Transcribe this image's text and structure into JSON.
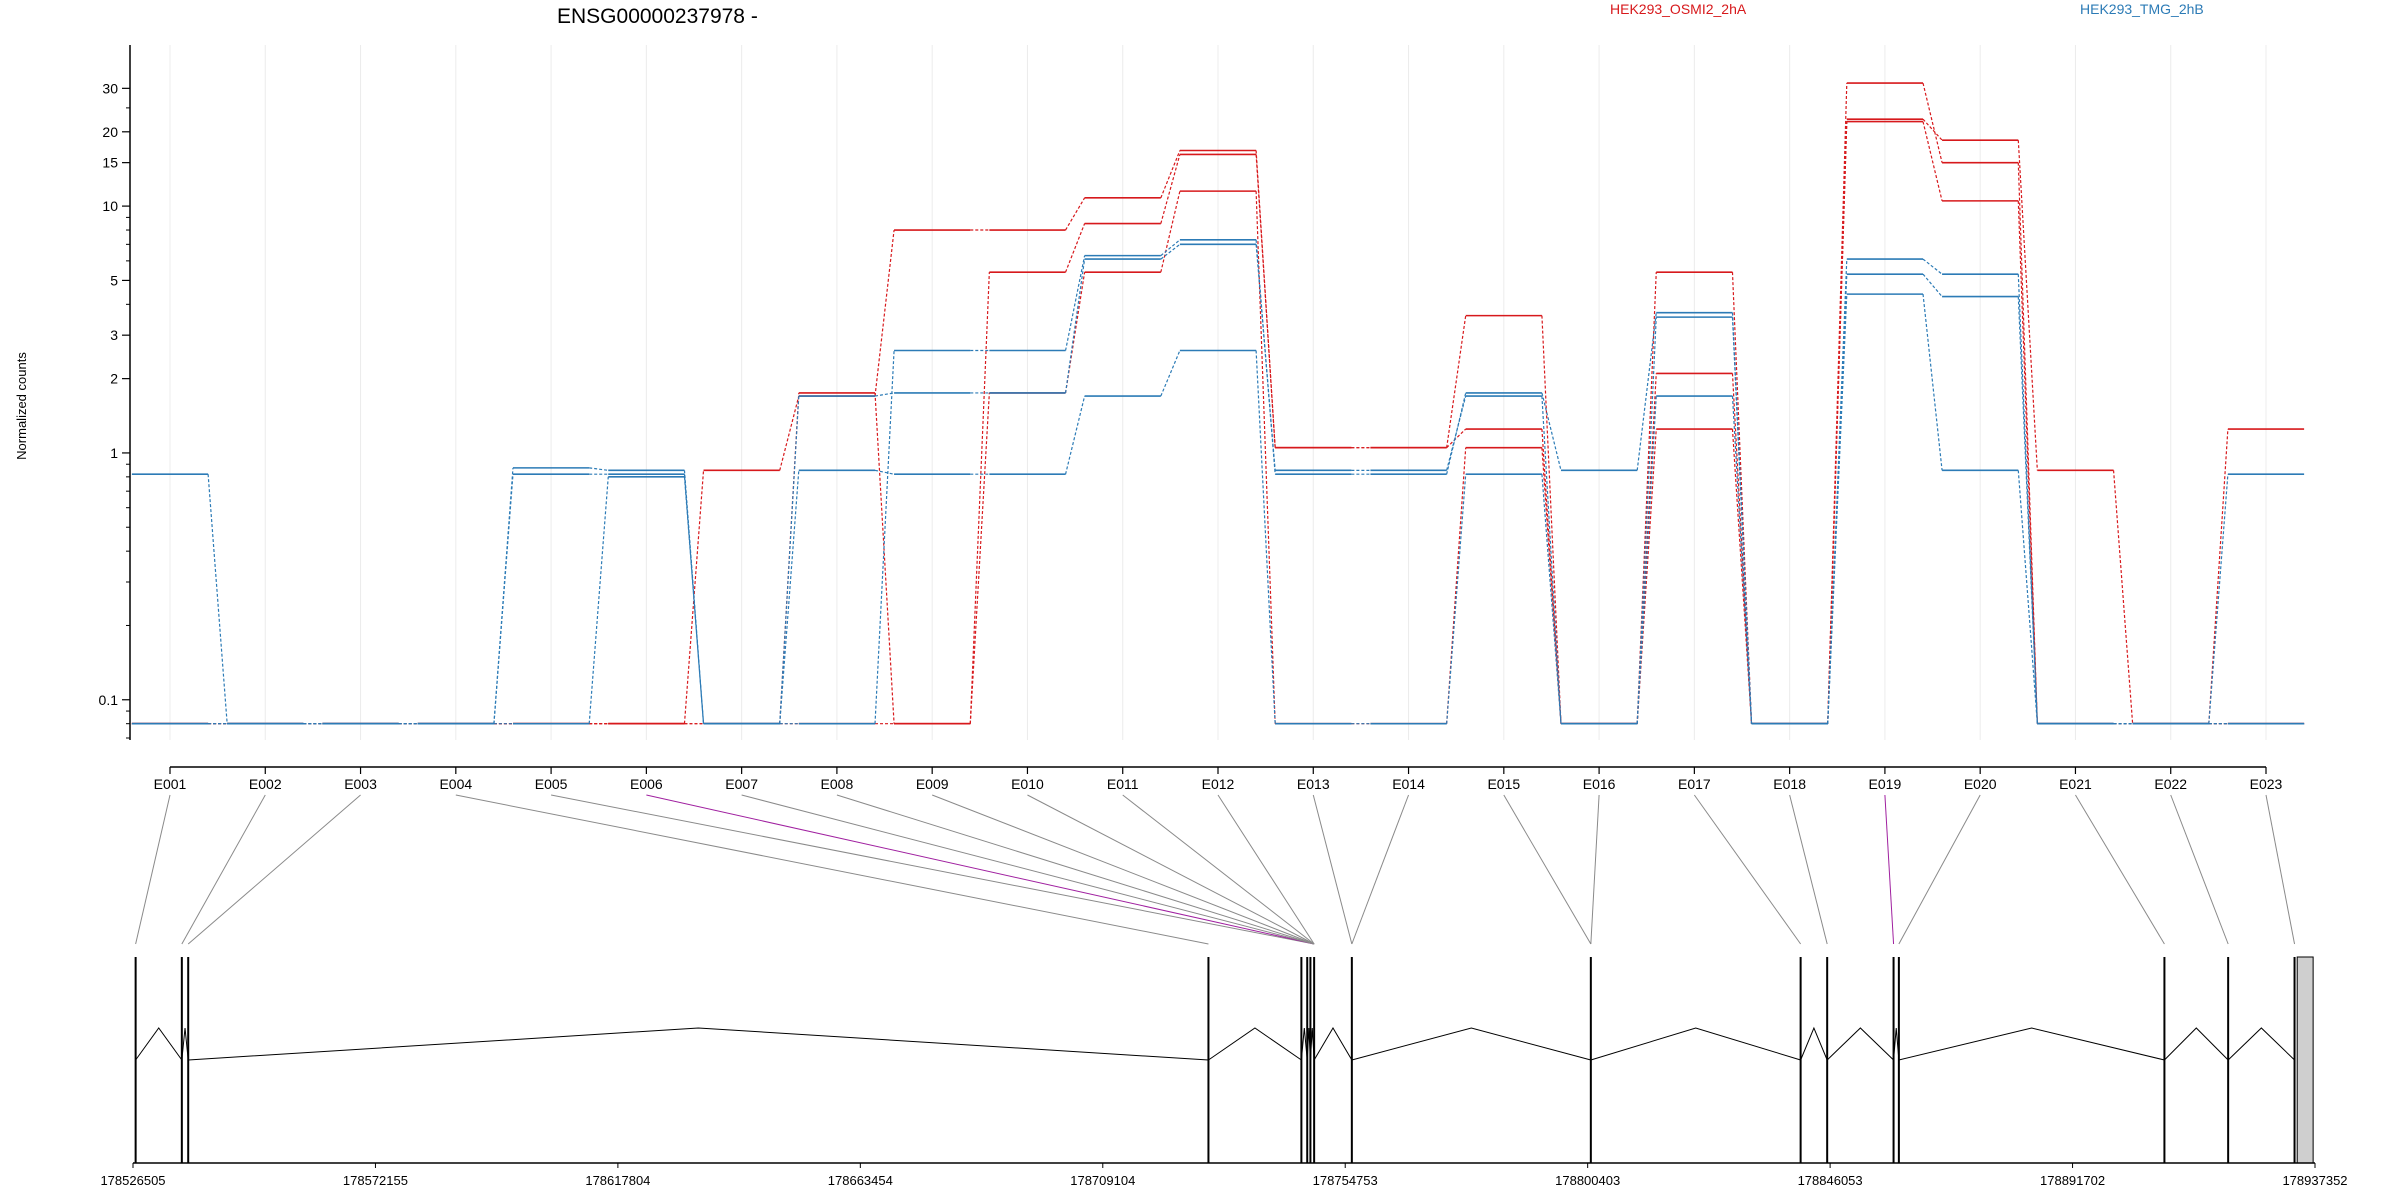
{
  "chart_data": {
    "type": "line",
    "title": "ENSG00000237978 -",
    "ylabel": "Normalized counts",
    "xlabel": "",
    "yscale": "log",
    "ylim": [
      0.07,
      38
    ],
    "yticks": [
      0.1,
      1,
      2,
      3,
      5,
      10,
      15,
      20,
      30
    ],
    "ytick_labels": [
      "0.1",
      "1",
      "2",
      "3",
      "5",
      "10",
      "15",
      "20",
      "30"
    ],
    "floor_value": 0.08,
    "legend": [
      {
        "label": "HEK293_OSMI2_2hA",
        "color": "#d7191c"
      },
      {
        "label": "HEK293_TMG_2hB",
        "color": "#2c7bb6"
      }
    ],
    "exons": [
      "E001",
      "E002",
      "E003",
      "E004",
      "E005",
      "E006",
      "E007",
      "E008",
      "E009",
      "E010",
      "E011",
      "E012",
      "E013",
      "E014",
      "E015",
      "E016",
      "E017",
      "E018",
      "E019",
      "E020",
      "E021",
      "E022",
      "E023"
    ],
    "series": [
      {
        "group": "HEK293_OSMI2_2hA",
        "color": "#d7191c",
        "values": [
          0.08,
          0.08,
          0.08,
          0.08,
          0.08,
          0.08,
          0.85,
          1.7,
          8.0,
          8.0,
          10.8,
          16.8,
          1.05,
          1.05,
          1.25,
          0.08,
          5.4,
          0.08,
          22.5,
          18.5,
          0.85,
          0.08,
          1.25
        ]
      },
      {
        "group": "HEK293_OSMI2_2hA",
        "color": "#d7191c",
        "values": [
          0.08,
          0.08,
          0.08,
          0.08,
          0.08,
          0.08,
          0.08,
          1.75,
          0.08,
          5.4,
          8.5,
          16.2,
          1.05,
          1.05,
          3.6,
          0.08,
          2.1,
          0.08,
          31.5,
          15.0,
          0.08,
          0.08,
          0.08
        ]
      },
      {
        "group": "HEK293_OSMI2_2hA",
        "color": "#d7191c",
        "values": [
          0.08,
          0.08,
          0.08,
          0.08,
          0.08,
          0.08,
          0.08,
          0.08,
          0.08,
          1.75,
          5.4,
          11.5,
          0.08,
          0.08,
          1.05,
          0.08,
          1.25,
          0.08,
          22.0,
          10.5,
          0.08,
          0.08,
          0.08
        ]
      },
      {
        "group": "HEK293_TMG_2hB",
        "color": "#2c7bb6",
        "values": [
          0.82,
          0.08,
          0.08,
          0.08,
          0.82,
          0.82,
          0.08,
          0.08,
          2.6,
          2.6,
          6.3,
          7.3,
          0.82,
          0.82,
          1.75,
          0.85,
          3.7,
          0.08,
          6.1,
          5.3,
          0.08,
          0.08,
          0.82
        ]
      },
      {
        "group": "HEK293_TMG_2hB",
        "color": "#2c7bb6",
        "values": [
          0.08,
          0.08,
          0.08,
          0.08,
          0.87,
          0.85,
          0.08,
          1.7,
          1.75,
          1.75,
          6.1,
          7.0,
          0.85,
          0.85,
          1.7,
          0.08,
          3.55,
          0.08,
          5.3,
          4.3,
          0.08,
          0.08,
          0.08
        ]
      },
      {
        "group": "HEK293_TMG_2hB",
        "color": "#2c7bb6",
        "values": [
          0.08,
          0.08,
          0.08,
          0.08,
          0.08,
          0.8,
          0.08,
          0.85,
          0.82,
          0.82,
          1.7,
          2.6,
          0.08,
          0.08,
          0.82,
          0.08,
          1.7,
          0.08,
          4.4,
          0.85,
          0.08,
          0.08,
          0.08
        ]
      }
    ],
    "gene_model": {
      "coord_range": [
        178526505,
        178937352
      ],
      "coord_ticks": [
        178526505,
        178572155,
        178617804,
        178663454,
        178709104,
        178754753,
        178800403,
        178846053,
        178891702,
        178937352
      ],
      "coord_tick_labels": [
        "178526505",
        "178572155",
        "178617804",
        "178663454",
        "178709104",
        "178754753",
        "178800403",
        "178846053",
        "178891702",
        "178937352"
      ],
      "exon_positions": [
        178527000,
        178535700,
        178536900,
        178729000,
        178746500,
        178747600,
        178748200,
        178748900,
        178756000,
        178801000,
        178840500,
        178845500,
        178858000,
        178859000,
        178909000,
        178921000,
        178933500
      ],
      "exon_links": [
        {
          "exon": "E001",
          "pos": 178527000
        },
        {
          "exon": "E002",
          "pos": 178535700
        },
        {
          "exon": "E003",
          "pos": 178536900
        },
        {
          "exon": "E004",
          "pos": 178729000
        },
        {
          "exon": "E005",
          "pos": 178748900
        },
        {
          "exon": "E006",
          "pos": 178748900,
          "highlight": true
        },
        {
          "exon": "E007",
          "pos": 178748900
        },
        {
          "exon": "E008",
          "pos": 178748900
        },
        {
          "exon": "E009",
          "pos": 178748900
        },
        {
          "exon": "E010",
          "pos": 178748900
        },
        {
          "exon": "E011",
          "pos": 178748900
        },
        {
          "exon": "E012",
          "pos": 178748900
        },
        {
          "exon": "E013",
          "pos": 178756000
        },
        {
          "exon": "E014",
          "pos": 178756000
        },
        {
          "exon": "E015",
          "pos": 178801000
        },
        {
          "exon": "E016",
          "pos": 178801000
        },
        {
          "exon": "E017",
          "pos": 178840500
        },
        {
          "exon": "E018",
          "pos": 178845500
        },
        {
          "exon": "E019",
          "pos": 178858000,
          "highlight": true
        },
        {
          "exon": "E020",
          "pos": 178859000
        },
        {
          "exon": "E021",
          "pos": 178909000
        },
        {
          "exon": "E022",
          "pos": 178921000
        },
        {
          "exon": "E023",
          "pos": 178933500
        }
      ],
      "terminal_exon_block": [
        178934000,
        178937000
      ]
    }
  }
}
